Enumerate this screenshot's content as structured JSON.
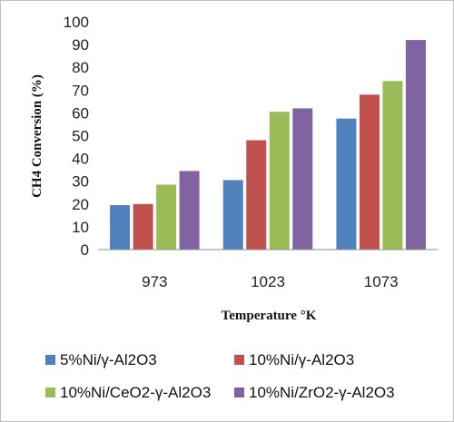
{
  "chart_data": {
    "type": "bar",
    "title": "",
    "xlabel": "Temperature °K",
    "ylabel": "CH4 Conversion (%)",
    "categories": [
      "973",
      "1023",
      "1073"
    ],
    "ylim": [
      0,
      100
    ],
    "yticks": [
      "0",
      "10",
      "20",
      "30",
      "40",
      "50",
      "60",
      "70",
      "80",
      "90",
      "100"
    ],
    "grid": false,
    "legend_position": "bottom",
    "series": [
      {
        "name": "5%Ni/γ-Al2O3",
        "color": "#4f81bd",
        "values": [
          19.5,
          30.5,
          57.5
        ]
      },
      {
        "name": "10%Ni/γ-Al2O3",
        "color": "#c0504d",
        "values": [
          20,
          48,
          68
        ]
      },
      {
        "name": "10%Ni/CeO2-γ-Al2O3",
        "color": "#9bbb59",
        "values": [
          28.5,
          60.5,
          74
        ]
      },
      {
        "name": "10%Ni/ZrO2-γ-Al2O3",
        "color": "#8064a2",
        "values": [
          34.5,
          62,
          92
        ]
      }
    ]
  }
}
